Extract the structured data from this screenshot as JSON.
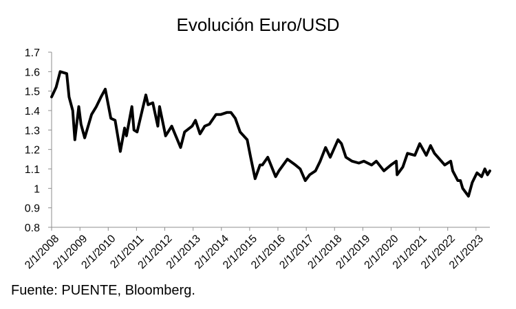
{
  "source_note": "Fuente: PUENTE, Bloomberg.",
  "chart_data": {
    "type": "line",
    "title": "Evolución Euro/USD",
    "xlabel": "",
    "ylabel": "",
    "ylim": [
      0.8,
      1.7
    ],
    "yticks": [
      0.8,
      0.9,
      1,
      1.1,
      1.2,
      1.3,
      1.4,
      1.5,
      1.6,
      1.7
    ],
    "ytick_labels": [
      "0.8",
      "0.9",
      "1",
      "1.1",
      "1.2",
      "1.3",
      "1.4",
      "1.5",
      "1.6",
      "1.7"
    ],
    "xlim": [
      "2008-01-02",
      "2023-06-30"
    ],
    "xticks": [
      "2008-01-02",
      "2009-01-02",
      "2010-01-02",
      "2011-01-02",
      "2012-01-02",
      "2013-01-02",
      "2014-01-02",
      "2015-01-02",
      "2016-01-02",
      "2017-01-02",
      "2018-01-02",
      "2019-01-02",
      "2020-01-02",
      "2021-01-02",
      "2022-01-02",
      "2023-01-02"
    ],
    "xtick_labels": [
      "2/1/2008",
      "2/1/2009",
      "2/1/2010",
      "2/1/2011",
      "2/1/2012",
      "2/1/2013",
      "2/1/2014",
      "2/1/2015",
      "2/1/2016",
      "2/1/2017",
      "2/1/2018",
      "2/1/2019",
      "2/1/2020",
      "2/1/2021",
      "2/1/2022",
      "2/1/2023"
    ],
    "grid": false,
    "line_color": "#000000",
    "series": [
      {
        "x": [
          "2008-01-02",
          "2008-03-01",
          "2008-04-22",
          "2008-07-15",
          "2008-08-15",
          "2008-10-01",
          "2008-10-28",
          "2008-12-18",
          "2009-01-15",
          "2009-03-04",
          "2009-06-01",
          "2009-08-01",
          "2009-10-01",
          "2009-11-25",
          "2010-02-05",
          "2010-04-01",
          "2010-06-07",
          "2010-08-01",
          "2010-08-25",
          "2010-11-04",
          "2010-11-30",
          "2011-01-10",
          "2011-05-03",
          "2011-06-01",
          "2011-08-01",
          "2011-10-04",
          "2011-10-27",
          "2012-01-13",
          "2012-04-01",
          "2012-07-24",
          "2012-09-14",
          "2012-12-20",
          "2013-02-01",
          "2013-04-01",
          "2013-06-01",
          "2013-08-01",
          "2013-10-25",
          "2013-12-27",
          "2014-03-13",
          "2014-05-06",
          "2014-07-01",
          "2014-09-01",
          "2014-12-01",
          "2015-01-15",
          "2015-03-13",
          "2015-05-15",
          "2015-06-15",
          "2015-08-24",
          "2015-12-03",
          "2016-01-15",
          "2016-05-03",
          "2016-08-15",
          "2016-10-15",
          "2016-12-20",
          "2017-02-15",
          "2017-05-01",
          "2017-07-01",
          "2017-09-08",
          "2017-11-07",
          "2018-02-16",
          "2018-04-01",
          "2018-05-29",
          "2018-08-15",
          "2018-11-12",
          "2019-01-15",
          "2019-04-25",
          "2019-06-25",
          "2019-10-01",
          "2019-12-31",
          "2020-03-09",
          "2020-03-20",
          "2020-06-01",
          "2020-08-01",
          "2020-11-04",
          "2021-01-06",
          "2021-03-31",
          "2021-05-25",
          "2021-07-15",
          "2021-11-24",
          "2022-02-10",
          "2022-03-07",
          "2022-05-12",
          "2022-06-15",
          "2022-07-14",
          "2022-09-27",
          "2022-11-15",
          "2023-01-15",
          "2023-03-15",
          "2023-04-26",
          "2023-05-31",
          "2023-06-30"
        ],
        "y": [
          1.47,
          1.52,
          1.6,
          1.59,
          1.47,
          1.4,
          1.25,
          1.42,
          1.33,
          1.26,
          1.38,
          1.42,
          1.47,
          1.51,
          1.36,
          1.35,
          1.19,
          1.31,
          1.27,
          1.42,
          1.3,
          1.29,
          1.48,
          1.43,
          1.44,
          1.32,
          1.42,
          1.27,
          1.32,
          1.21,
          1.29,
          1.32,
          1.35,
          1.28,
          1.32,
          1.33,
          1.38,
          1.38,
          1.39,
          1.39,
          1.36,
          1.29,
          1.25,
          1.16,
          1.05,
          1.12,
          1.12,
          1.16,
          1.06,
          1.09,
          1.15,
          1.12,
          1.1,
          1.04,
          1.07,
          1.09,
          1.14,
          1.21,
          1.16,
          1.25,
          1.23,
          1.16,
          1.14,
          1.13,
          1.14,
          1.12,
          1.14,
          1.09,
          1.12,
          1.14,
          1.07,
          1.11,
          1.18,
          1.17,
          1.23,
          1.17,
          1.22,
          1.18,
          1.12,
          1.14,
          1.09,
          1.04,
          1.04,
          1.0,
          0.96,
          1.03,
          1.08,
          1.06,
          1.1,
          1.07,
          1.09
        ]
      }
    ]
  }
}
